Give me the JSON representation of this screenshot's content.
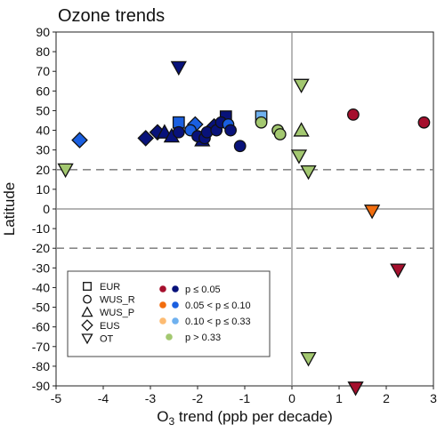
{
  "chart_data": {
    "type": "scatter",
    "title": "Ozone trends",
    "xlabel_main": "O",
    "xlabel_sub": "3",
    "xlabel_rest": " trend (ppb per decade)",
    "ylabel": "Latitude",
    "xlim": [
      -5,
      3
    ],
    "ylim": [
      -90,
      90
    ],
    "xticks": [
      "-5",
      "-4",
      "-3",
      "-2",
      "-1",
      "0",
      "1",
      "2",
      "3"
    ],
    "yticks": [
      "90",
      "80",
      "70",
      "60",
      "50",
      "40",
      "30",
      "20",
      "10",
      "0",
      "-10",
      "-20",
      "-30",
      "-40",
      "-50",
      "-60",
      "-70",
      "-80",
      "-90"
    ],
    "reference_lines": {
      "dashed_y": [
        20,
        -20
      ],
      "solid_x": [
        0
      ],
      "solid_y": [
        0
      ]
    },
    "grid": false,
    "legend_position": "bottom-left",
    "legend": {
      "shapes": [
        {
          "label": "EUR",
          "shape": "square"
        },
        {
          "label": "WUS_R",
          "shape": "circle"
        },
        {
          "label": "WUS_P",
          "shape": "triangle-up"
        },
        {
          "label": "EUS",
          "shape": "diamond"
        },
        {
          "label": "OT",
          "shape": "triangle-down"
        }
      ],
      "significance": [
        {
          "label": "p ≤ 0.05",
          "colors": [
            "#a50f2d",
            "#08127a"
          ]
        },
        {
          "label": "0.05 < p ≤ 0.10",
          "colors": [
            "#f26d0e",
            "#1a5fe0"
          ]
        },
        {
          "label": "0.10 < p ≤ 0.33",
          "colors": [
            "#fdbb72",
            "#6fb1ef"
          ]
        },
        {
          "label": "p > 0.33",
          "colors": [
            "#a3c870"
          ]
        }
      ]
    },
    "points": [
      {
        "x": -2.4,
        "y": 72,
        "shape": "triangle-down",
        "color": "#08127a"
      },
      {
        "x": 0.2,
        "y": 63,
        "shape": "triangle-down",
        "color": "#a3c870"
      },
      {
        "x": -4.8,
        "y": 20,
        "shape": "triangle-down",
        "color": "#a3c870"
      },
      {
        "x": 0.15,
        "y": 27,
        "shape": "triangle-down",
        "color": "#a3c870"
      },
      {
        "x": 0.35,
        "y": 19,
        "shape": "triangle-down",
        "color": "#a3c870"
      },
      {
        "x": 1.7,
        "y": -1,
        "shape": "triangle-down",
        "color": "#f26d0e"
      },
      {
        "x": 2.25,
        "y": -31,
        "shape": "triangle-down",
        "color": "#a50f2d"
      },
      {
        "x": 0.35,
        "y": -76,
        "shape": "triangle-down",
        "color": "#a3c870"
      },
      {
        "x": 1.35,
        "y": -91,
        "shape": "triangle-down",
        "color": "#a50f2d"
      },
      {
        "x": 1.3,
        "y": 48,
        "shape": "circle",
        "color": "#a50f2d"
      },
      {
        "x": 2.8,
        "y": 44,
        "shape": "circle",
        "color": "#a50f2d"
      },
      {
        "x": -4.5,
        "y": 35,
        "shape": "diamond",
        "color": "#1a5fe0"
      },
      {
        "x": -3.1,
        "y": 36,
        "shape": "diamond",
        "color": "#08127a"
      },
      {
        "x": -2.85,
        "y": 39,
        "shape": "diamond",
        "color": "#08127a"
      },
      {
        "x": -2.05,
        "y": 43,
        "shape": "diamond",
        "color": "#1a5fe0"
      },
      {
        "x": -1.65,
        "y": 42,
        "shape": "diamond",
        "color": "#08127a"
      },
      {
        "x": -2.7,
        "y": 39,
        "shape": "triangle-up",
        "color": "#08127a"
      },
      {
        "x": -2.55,
        "y": 37,
        "shape": "triangle-up",
        "color": "#08127a"
      },
      {
        "x": -1.9,
        "y": 35,
        "shape": "triangle-up",
        "color": "#08127a"
      },
      {
        "x": 0.2,
        "y": 40,
        "shape": "triangle-up",
        "color": "#a3c870"
      },
      {
        "x": -2.4,
        "y": 44,
        "shape": "square",
        "color": "#1a5fe0"
      },
      {
        "x": -1.4,
        "y": 47,
        "shape": "square",
        "color": "#08127a"
      },
      {
        "x": -0.65,
        "y": 47,
        "shape": "square",
        "color": "#6fb1ef"
      },
      {
        "x": -2.4,
        "y": 39,
        "shape": "circle",
        "color": "#08127a"
      },
      {
        "x": -2.15,
        "y": 40,
        "shape": "circle",
        "color": "#1a5fe0"
      },
      {
        "x": -2.0,
        "y": 37,
        "shape": "circle",
        "color": "#08127a"
      },
      {
        "x": -1.85,
        "y": 36,
        "shape": "circle",
        "color": "#08127a"
      },
      {
        "x": -1.8,
        "y": 39,
        "shape": "circle",
        "color": "#08127a"
      },
      {
        "x": -1.6,
        "y": 40,
        "shape": "circle",
        "color": "#08127a"
      },
      {
        "x": -1.5,
        "y": 44,
        "shape": "circle",
        "color": "#08127a"
      },
      {
        "x": -1.35,
        "y": 43,
        "shape": "circle",
        "color": "#1a5fe0"
      },
      {
        "x": -1.3,
        "y": 40,
        "shape": "circle",
        "color": "#08127a"
      },
      {
        "x": -1.1,
        "y": 32,
        "shape": "circle",
        "color": "#08127a"
      },
      {
        "x": -0.65,
        "y": 44,
        "shape": "circle",
        "color": "#a3c870"
      },
      {
        "x": -0.3,
        "y": 40,
        "shape": "circle",
        "color": "#a3c870"
      },
      {
        "x": -0.25,
        "y": 38,
        "shape": "circle",
        "color": "#a3c870"
      }
    ]
  }
}
